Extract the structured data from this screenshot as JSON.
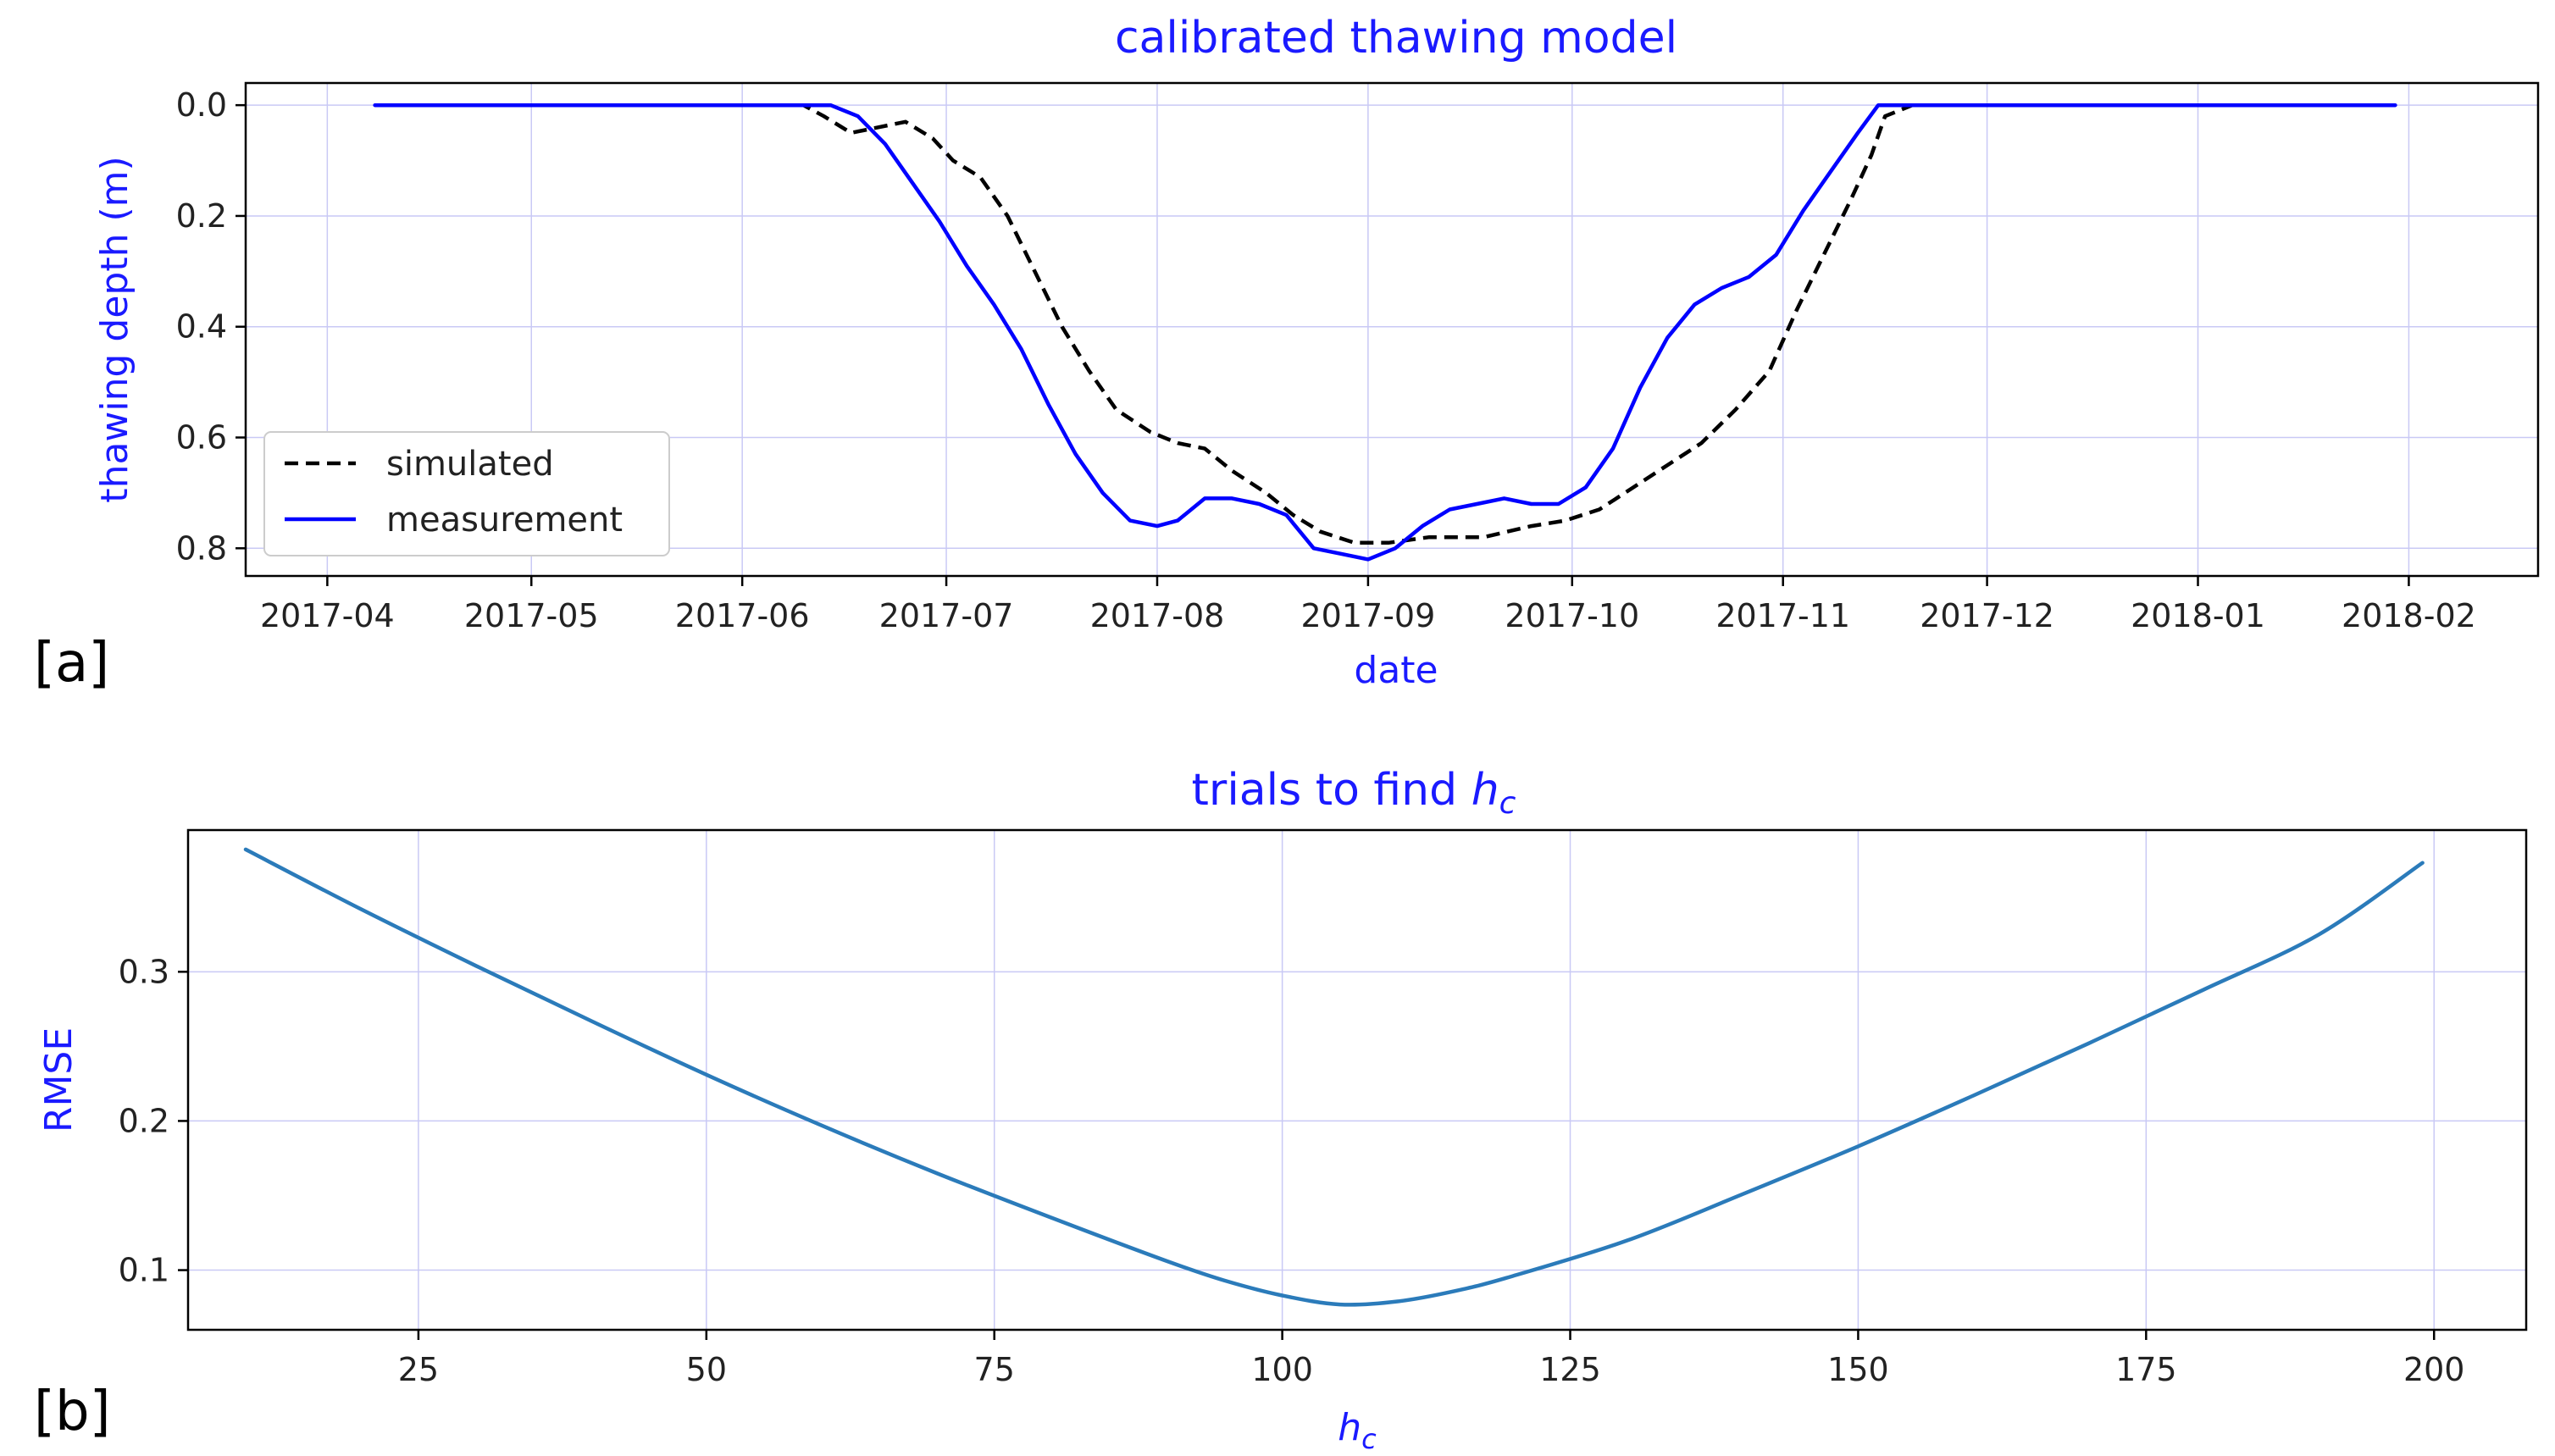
{
  "chart_data": [
    {
      "type": "line",
      "panel_label": "[a]",
      "title": "calibrated thawing model",
      "xlabel": "date",
      "ylabel": "thawing depth (m)",
      "y_inverted": true,
      "ylim": [
        0.85,
        -0.04
      ],
      "xlim": [
        "2017-03-20",
        "2018-02-20"
      ],
      "grid": true,
      "legend_position": "lower-left",
      "x_ticks": [
        "2017-04",
        "2017-05",
        "2017-06",
        "2017-07",
        "2017-08",
        "2017-09",
        "2017-10",
        "2017-11",
        "2017-12",
        "2018-01",
        "2018-02"
      ],
      "y_ticks": [
        "0.0",
        "0.2",
        "0.4",
        "0.6",
        "0.8"
      ],
      "series": [
        {
          "name": "simulated",
          "color": "#000000",
          "style": "dashed",
          "x": [
            "2017-06-06",
            "2017-06-10",
            "2017-06-13",
            "2017-06-17",
            "2017-06-21",
            "2017-06-25",
            "2017-06-29",
            "2017-07-02",
            "2017-07-06",
            "2017-07-10",
            "2017-07-14",
            "2017-07-18",
            "2017-07-22",
            "2017-07-26",
            "2017-07-31",
            "2017-08-04",
            "2017-08-08",
            "2017-08-12",
            "2017-08-17",
            "2017-08-21",
            "2017-08-25",
            "2017-08-30",
            "2017-09-04",
            "2017-09-10",
            "2017-09-18",
            "2017-09-25",
            "2017-09-30",
            "2017-10-05",
            "2017-10-10",
            "2017-10-15",
            "2017-10-20",
            "2017-10-25",
            "2017-10-30",
            "2017-11-03",
            "2017-11-07",
            "2017-11-11",
            "2017-11-14",
            "2017-11-16",
            "2017-11-20",
            "2017-12-15",
            "2018-01-10",
            "2018-01-30"
          ],
          "y": [
            0.0,
            0.0,
            0.02,
            0.05,
            0.04,
            0.03,
            0.06,
            0.1,
            0.13,
            0.2,
            0.3,
            0.4,
            0.48,
            0.55,
            0.59,
            0.61,
            0.62,
            0.66,
            0.7,
            0.74,
            0.77,
            0.79,
            0.79,
            0.78,
            0.78,
            0.76,
            0.75,
            0.73,
            0.69,
            0.65,
            0.61,
            0.55,
            0.48,
            0.37,
            0.27,
            0.17,
            0.09,
            0.02,
            0.0,
            0.0,
            0.0,
            0.0
          ]
        },
        {
          "name": "measurement",
          "color": "#0000ff",
          "style": "solid",
          "x": [
            "2017-04-08",
            "2017-05-01",
            "2017-06-01",
            "2017-06-10",
            "2017-06-14",
            "2017-06-18",
            "2017-06-22",
            "2017-06-26",
            "2017-06-30",
            "2017-07-04",
            "2017-07-08",
            "2017-07-12",
            "2017-07-16",
            "2017-07-20",
            "2017-07-24",
            "2017-07-28",
            "2017-08-01",
            "2017-08-04",
            "2017-08-08",
            "2017-08-12",
            "2017-08-16",
            "2017-08-20",
            "2017-08-24",
            "2017-08-28",
            "2017-09-01",
            "2017-09-05",
            "2017-09-09",
            "2017-09-13",
            "2017-09-17",
            "2017-09-21",
            "2017-09-25",
            "2017-09-29",
            "2017-10-03",
            "2017-10-07",
            "2017-10-11",
            "2017-10-15",
            "2017-10-19",
            "2017-10-23",
            "2017-10-27",
            "2017-10-31",
            "2017-11-04",
            "2017-11-08",
            "2017-11-12",
            "2017-11-15",
            "2017-11-20",
            "2017-12-15",
            "2018-01-10",
            "2018-01-30"
          ],
          "y": [
            0.0,
            0.0,
            0.0,
            0.0,
            0.0,
            0.02,
            0.07,
            0.14,
            0.21,
            0.29,
            0.36,
            0.44,
            0.54,
            0.63,
            0.7,
            0.75,
            0.76,
            0.75,
            0.71,
            0.71,
            0.72,
            0.74,
            0.8,
            0.81,
            0.82,
            0.8,
            0.76,
            0.73,
            0.72,
            0.71,
            0.72,
            0.72,
            0.69,
            0.62,
            0.51,
            0.42,
            0.36,
            0.33,
            0.31,
            0.27,
            0.19,
            0.12,
            0.05,
            0.0,
            0.0,
            0.0,
            0.0,
            0.0
          ]
        }
      ]
    },
    {
      "type": "line",
      "panel_label": "[b]",
      "title": "trials to find h_c",
      "title_text": "trials to find ",
      "title_sym": "h",
      "title_sub": "c",
      "xlabel": "h_c",
      "xlabel_sym": "h",
      "xlabel_sub": "c",
      "ylabel": "RMSE",
      "xlim": [
        5,
        208
      ],
      "ylim": [
        0.06,
        0.395
      ],
      "grid": true,
      "x_ticks": [
        "25",
        "50",
        "75",
        "100",
        "125",
        "150",
        "175",
        "200"
      ],
      "y_ticks": [
        "0.1",
        "0.2",
        "0.3"
      ],
      "series": [
        {
          "color": "#2b7bba",
          "style": "solid",
          "x": [
            10,
            20,
            30,
            40,
            50,
            60,
            70,
            80,
            90,
            95,
            100,
            105,
            110,
            115,
            120,
            130,
            140,
            150,
            160,
            170,
            180,
            190,
            199
          ],
          "y": [
            0.382,
            0.342,
            0.304,
            0.267,
            0.231,
            0.197,
            0.165,
            0.135,
            0.106,
            0.093,
            0.083,
            0.077,
            0.079,
            0.086,
            0.096,
            0.12,
            0.151,
            0.183,
            0.217,
            0.252,
            0.288,
            0.325,
            0.373
          ]
        }
      ]
    }
  ]
}
